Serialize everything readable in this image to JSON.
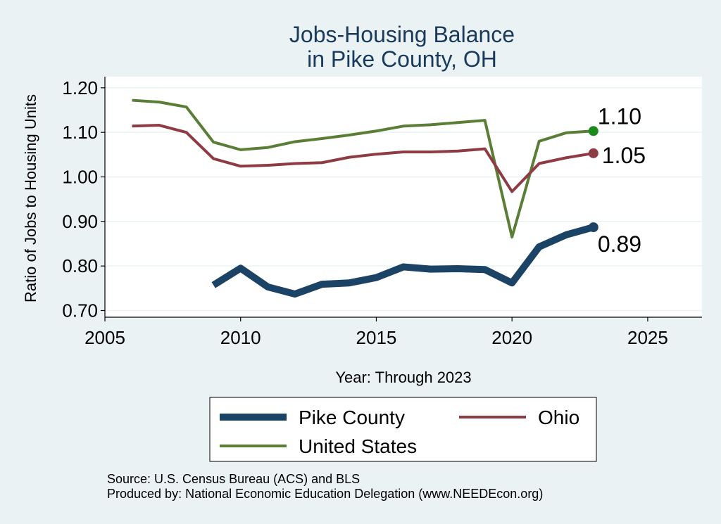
{
  "chart_data": {
    "type": "line",
    "title_lines": [
      "Jobs-Housing Balance",
      "in Pike County, OH"
    ],
    "xlabel": "Year: Through 2023",
    "ylabel": "Ratio of Jobs to Housing Units",
    "xlim": [
      2005,
      2027
    ],
    "ylim": [
      0.685,
      1.225
    ],
    "x_ticks": [
      2005,
      2010,
      2015,
      2020,
      2025
    ],
    "x_tick_labels": [
      "2005",
      "2010",
      "2015",
      "2020",
      "2025"
    ],
    "y_ticks": [
      0.7,
      0.8,
      0.9,
      1.0,
      1.1,
      1.2
    ],
    "y_tick_labels": [
      "0.70",
      "0.80",
      "0.90",
      "1.00",
      "1.10",
      "1.20"
    ],
    "grid": true,
    "legend_position": "bottom",
    "series": [
      {
        "name": "United States",
        "color": "#5a7e36",
        "width": 4,
        "end_label": "1.10",
        "x": [
          2006,
          2007,
          2008,
          2009,
          2010,
          2011,
          2012,
          2013,
          2014,
          2015,
          2016,
          2017,
          2018,
          2019,
          2020,
          2021,
          2022,
          2023
        ],
        "values": [
          1.172,
          1.168,
          1.157,
          1.078,
          1.061,
          1.066,
          1.079,
          1.086,
          1.094,
          1.103,
          1.114,
          1.117,
          1.122,
          1.127,
          0.865,
          1.08,
          1.099,
          1.103
        ]
      },
      {
        "name": "Ohio",
        "color": "#8f3b44",
        "width": 4,
        "end_label": "1.05",
        "x": [
          2006,
          2007,
          2008,
          2009,
          2010,
          2011,
          2012,
          2013,
          2014,
          2015,
          2016,
          2017,
          2018,
          2019,
          2020,
          2021,
          2022,
          2023
        ],
        "values": [
          1.114,
          1.116,
          1.1,
          1.041,
          1.024,
          1.026,
          1.03,
          1.032,
          1.044,
          1.051,
          1.056,
          1.056,
          1.058,
          1.063,
          0.967,
          1.03,
          1.043,
          1.053
        ]
      },
      {
        "name": "Pike County",
        "color": "#1a4366",
        "width": 10,
        "end_label": "0.89",
        "x": [
          2009,
          2010,
          2011,
          2012,
          2013,
          2014,
          2015,
          2016,
          2017,
          2018,
          2019,
          2020,
          2021,
          2022,
          2023
        ],
        "values": [
          0.757,
          0.795,
          0.753,
          0.737,
          0.759,
          0.762,
          0.774,
          0.798,
          0.793,
          0.794,
          0.792,
          0.762,
          0.843,
          0.87,
          0.887
        ]
      }
    ],
    "end_marker_colors": [
      "#1b8a1b",
      "#8f3b44",
      "#1a4366"
    ],
    "legend_items": [
      {
        "name": "Pike County",
        "color": "#1a4366",
        "width": 10
      },
      {
        "name": "Ohio",
        "color": "#8f3b44",
        "width": 4
      },
      {
        "name": "United States",
        "color": "#5a7e36",
        "width": 4
      }
    ],
    "source_lines": [
      "Source: U.S. Census Bureau (ACS) and BLS",
      "Produced by: National Economic Education Delegation (www.NEEDEcon.org)"
    ]
  },
  "colors": {
    "background": "#eaf2f3",
    "plot_background": "#ffffff",
    "grid": "#eaf2f3",
    "title": "#1a3a5c",
    "text": "#000000"
  }
}
